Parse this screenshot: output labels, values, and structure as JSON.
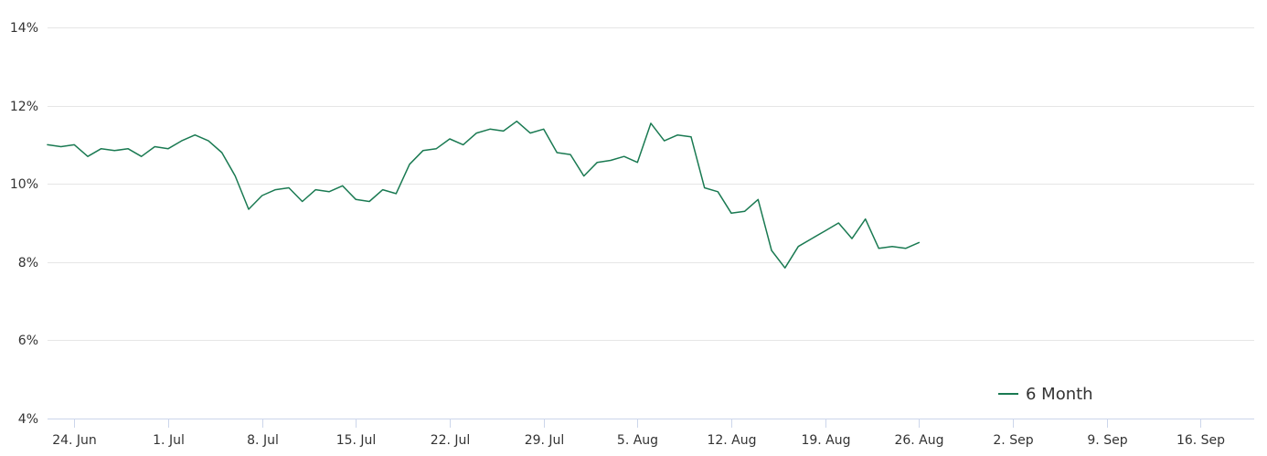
{
  "chart_data": {
    "type": "line",
    "title": "",
    "xlabel": "",
    "ylabel": "",
    "ylim": [
      4,
      14
    ],
    "y_ticks": [
      "4%",
      "6%",
      "8%",
      "10%",
      "12%",
      "14%"
    ],
    "y_tick_values": [
      4,
      6,
      8,
      10,
      12,
      14
    ],
    "x_range": [
      "2024-06-22",
      "2024-09-20"
    ],
    "x_ticks": [
      "24. Jun",
      "1. Jul",
      "8. Jul",
      "15. Jul",
      "22. Jul",
      "29. Jul",
      "5. Aug",
      "12. Aug",
      "19. Aug",
      "26. Aug",
      "2. Sep",
      "9. Sep",
      "16. Sep"
    ],
    "x_tick_dates": [
      "2024-06-24",
      "2024-07-01",
      "2024-07-08",
      "2024-07-15",
      "2024-07-22",
      "2024-07-29",
      "2024-08-05",
      "2024-08-12",
      "2024-08-19",
      "2024-08-26",
      "2024-09-02",
      "2024-09-09",
      "2024-09-16"
    ],
    "grid": true,
    "legend_position": "bottom-right",
    "series": [
      {
        "name": "6 Month",
        "color": "#1a7a52",
        "points": [
          [
            "2024-06-22",
            11.0
          ],
          [
            "2024-06-23",
            10.95
          ],
          [
            "2024-06-24",
            11.0
          ],
          [
            "2024-06-25",
            10.7
          ],
          [
            "2024-06-26",
            10.9
          ],
          [
            "2024-06-27",
            10.85
          ],
          [
            "2024-06-28",
            10.9
          ],
          [
            "2024-06-29",
            10.7
          ],
          [
            "2024-06-30",
            10.95
          ],
          [
            "2024-07-01",
            10.9
          ],
          [
            "2024-07-02",
            11.1
          ],
          [
            "2024-07-03",
            11.25
          ],
          [
            "2024-07-04",
            11.1
          ],
          [
            "2024-07-05",
            10.8
          ],
          [
            "2024-07-06",
            10.2
          ],
          [
            "2024-07-07",
            9.35
          ],
          [
            "2024-07-08",
            9.7
          ],
          [
            "2024-07-09",
            9.85
          ],
          [
            "2024-07-10",
            9.9
          ],
          [
            "2024-07-11",
            9.55
          ],
          [
            "2024-07-12",
            9.85
          ],
          [
            "2024-07-13",
            9.8
          ],
          [
            "2024-07-14",
            9.95
          ],
          [
            "2024-07-15",
            9.6
          ],
          [
            "2024-07-16",
            9.55
          ],
          [
            "2024-07-17",
            9.85
          ],
          [
            "2024-07-18",
            9.75
          ],
          [
            "2024-07-19",
            10.5
          ],
          [
            "2024-07-20",
            10.85
          ],
          [
            "2024-07-21",
            10.9
          ],
          [
            "2024-07-22",
            11.15
          ],
          [
            "2024-07-23",
            11.0
          ],
          [
            "2024-07-24",
            11.3
          ],
          [
            "2024-07-25",
            11.4
          ],
          [
            "2024-07-26",
            11.35
          ],
          [
            "2024-07-27",
            11.6
          ],
          [
            "2024-07-28",
            11.3
          ],
          [
            "2024-07-29",
            11.4
          ],
          [
            "2024-07-30",
            10.8
          ],
          [
            "2024-07-31",
            10.75
          ],
          [
            "2024-08-01",
            10.2
          ],
          [
            "2024-08-02",
            10.55
          ],
          [
            "2024-08-03",
            10.6
          ],
          [
            "2024-08-04",
            10.7
          ],
          [
            "2024-08-05",
            10.55
          ],
          [
            "2024-08-06",
            11.55
          ],
          [
            "2024-08-07",
            11.1
          ],
          [
            "2024-08-08",
            11.25
          ],
          [
            "2024-08-09",
            11.2
          ],
          [
            "2024-08-10",
            9.9
          ],
          [
            "2024-08-11",
            9.8
          ],
          [
            "2024-08-12",
            9.25
          ],
          [
            "2024-08-13",
            9.3
          ],
          [
            "2024-08-14",
            9.6
          ],
          [
            "2024-08-15",
            8.3
          ],
          [
            "2024-08-16",
            7.85
          ],
          [
            "2024-08-17",
            8.4
          ],
          [
            "2024-08-18",
            8.6
          ],
          [
            "2024-08-19",
            8.8
          ],
          [
            "2024-08-20",
            9.0
          ],
          [
            "2024-08-21",
            8.6
          ],
          [
            "2024-08-22",
            9.1
          ],
          [
            "2024-08-23",
            8.35
          ],
          [
            "2024-08-24",
            8.4
          ],
          [
            "2024-08-25",
            8.35
          ],
          [
            "2024-08-26",
            8.5
          ]
        ]
      }
    ]
  }
}
